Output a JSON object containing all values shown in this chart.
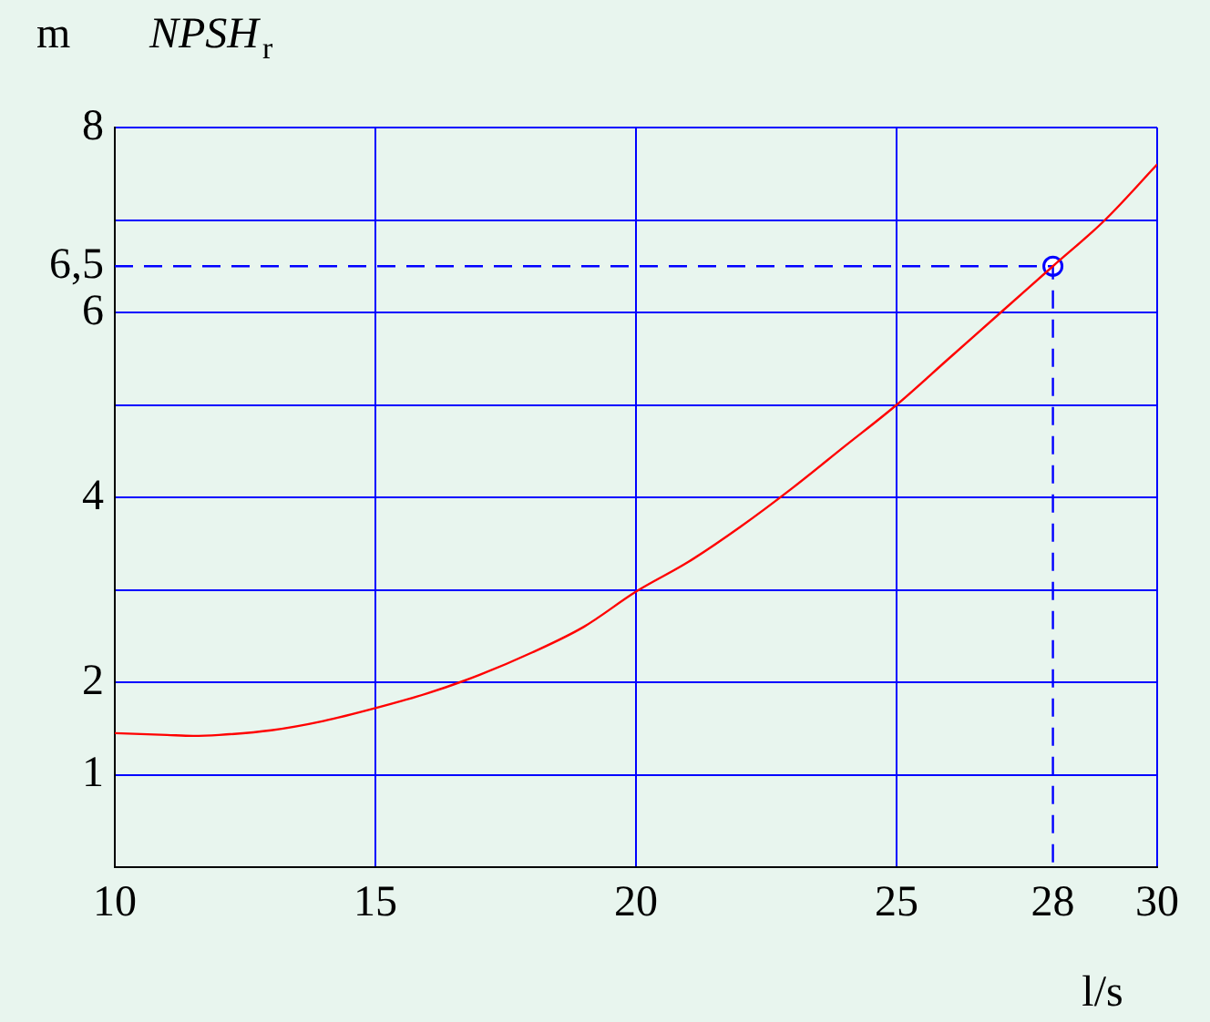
{
  "chart_data": {
    "type": "line",
    "title": "NPSH$_{r}$",
    "ylabel": "m",
    "xlabel": "l/s",
    "xlim": [
      10,
      30
    ],
    "xticks": [
      10,
      15,
      20,
      25,
      28,
      30
    ],
    "ylim": [
      0,
      8
    ],
    "yticks": [
      {
        "value": 1,
        "label": "1"
      },
      {
        "value": 2,
        "label": "2"
      },
      {
        "value": 3,
        "label": null
      },
      {
        "value": 4,
        "label": "4"
      },
      {
        "value": 5,
        "label": null
      },
      {
        "value": 6,
        "label": "6"
      },
      {
        "value": 6.5,
        "label": "6,5"
      },
      {
        "value": 7,
        "label": null
      },
      {
        "value": 8,
        "label": "8"
      }
    ],
    "grid": true,
    "legend": false,
    "series": [
      {
        "color": "#ff0000",
        "marker": "none",
        "x": [
          10,
          11,
          11.5,
          12,
          13,
          14,
          15,
          16,
          17,
          18,
          19,
          20,
          21,
          22,
          23,
          24,
          25,
          26,
          27,
          28,
          29,
          30
        ],
        "values": [
          1.45,
          1.43,
          1.42,
          1.43,
          1.48,
          1.58,
          1.72,
          1.88,
          2.08,
          2.32,
          2.6,
          2.98,
          3.3,
          3.68,
          4.1,
          4.55,
          5.0,
          5.5,
          6.0,
          6.5,
          7.0,
          7.6
        ]
      },
      {
        "type": "line",
        "color": "#0000ff",
        "marker": "none",
        "line_style": "dashed",
        "x": [
          10,
          28,
          28
        ],
        "values": [
          6.5,
          6.5,
          0
        ]
      },
      {
        "type": "scatter",
        "color": "#0000ff",
        "marker": "circle",
        "x": [
          28
        ],
        "values": [
          6.5
        ]
      }
    ]
  }
}
